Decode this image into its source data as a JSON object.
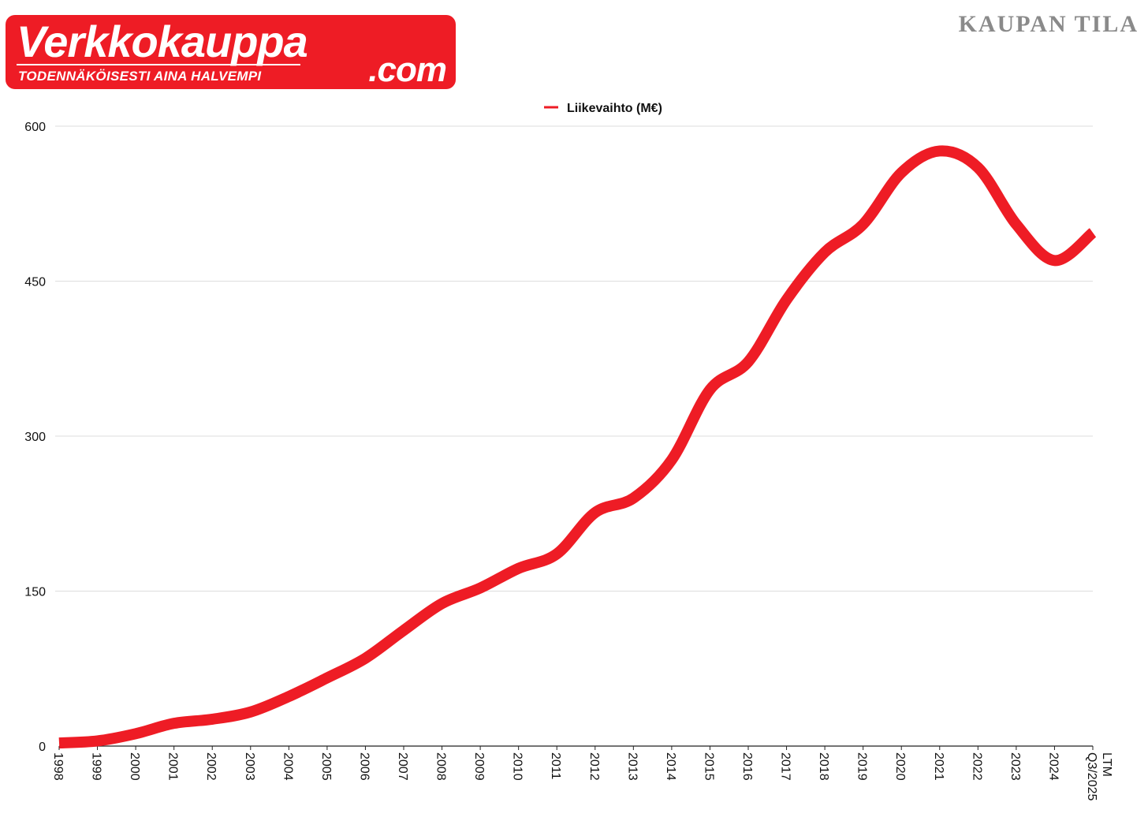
{
  "header": {
    "logo_text": "Verkkokauppa",
    "logo_domain": ".com",
    "logo_tagline": "TODENNÄKÖISESTI AINA HALVEMPI",
    "brand": "KAUPAN TILA"
  },
  "colors": {
    "line": "#ee1c25",
    "grid": "#dddddd",
    "axis": "#222222",
    "text": "#111111",
    "brand": "#8a8a8a"
  },
  "chart_data": {
    "type": "line",
    "title": "",
    "xlabel": "",
    "ylabel": "",
    "legend_position": "top-center",
    "grid": true,
    "ylim": [
      0,
      600
    ],
    "yticks": [
      "0",
      "150",
      "300",
      "450",
      "600"
    ],
    "categories": [
      "1998",
      "1999",
      "2000",
      "2001",
      "2002",
      "2003",
      "2004",
      "2005",
      "2006",
      "2007",
      "2008",
      "2009",
      "2010",
      "2011",
      "2012",
      "2013",
      "2014",
      "2015",
      "2016",
      "2017",
      "2018",
      "2019",
      "2020",
      "2021",
      "2022",
      "2023",
      "2024",
      "LTM Q3/2025"
    ],
    "series": [
      {
        "name": "Liikevaihto (M€)",
        "values": [
          3,
          5,
          12,
          22,
          26,
          33,
          48,
          66,
          85,
          112,
          138,
          153,
          172,
          186,
          226,
          240,
          277,
          345,
          372,
          432,
          478,
          505,
          555,
          576,
          560,
          505,
          470,
          497
        ]
      }
    ]
  }
}
